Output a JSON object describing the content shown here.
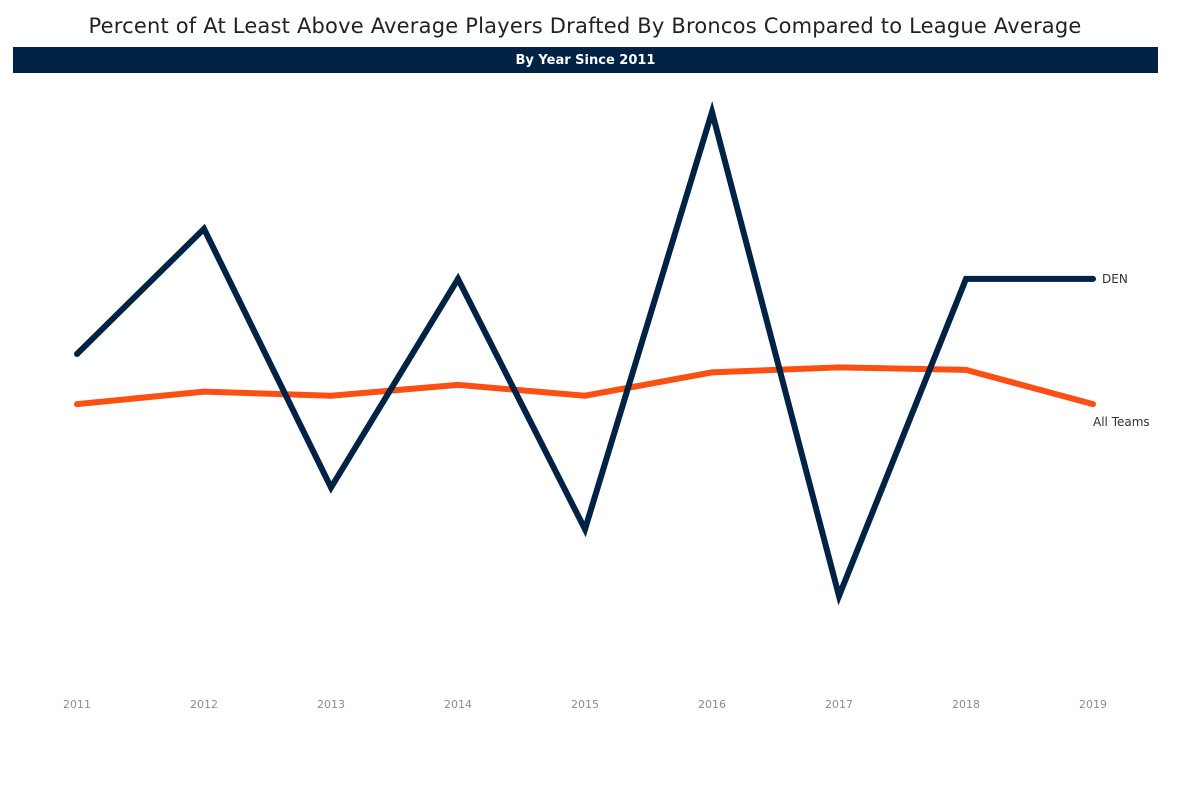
{
  "chart_data": {
    "type": "line",
    "title": "Percent of At Least Above Average Players Drafted By Broncos Compared to League Average",
    "subtitle": "By Year Since 2011",
    "x": [
      "2011",
      "2012",
      "2013",
      "2014",
      "2015",
      "2016",
      "2017",
      "2018",
      "2019"
    ],
    "series": [
      {
        "name": "DEN",
        "color": "#002244",
        "values": [
          0.29,
          0.44,
          0.13,
          0.38,
          0.08,
          0.58,
          0.0,
          0.38,
          0.38
        ]
      },
      {
        "name": "All Teams",
        "color": "#FB4F14",
        "values": [
          0.23,
          0.245,
          0.24,
          0.253,
          0.24,
          0.268,
          0.274,
          0.271,
          0.23
        ]
      }
    ],
    "ylim": [
      -0.09,
      0.61
    ],
    "xlabel": "",
    "ylabel": "",
    "grid": false,
    "legend": "labels at line ends (right)"
  }
}
